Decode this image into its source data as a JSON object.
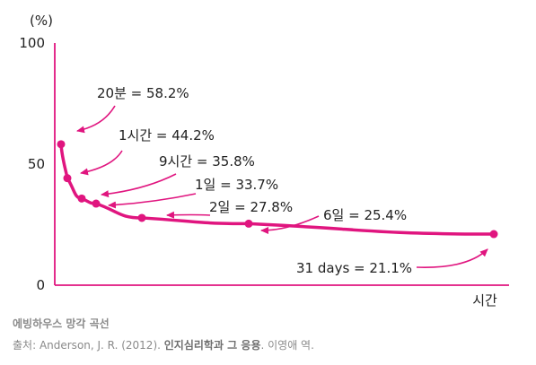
{
  "chart_data": {
    "type": "line",
    "y_unit_label": "(%)",
    "xlabel": "시간",
    "ylim": [
      0,
      100
    ],
    "y_ticks": [
      "0",
      "50",
      "100"
    ],
    "series_color": "#e0157f",
    "points": [
      {
        "time": "20분",
        "y": 58.2,
        "label": "20분 = 58.2%"
      },
      {
        "time": "1시간",
        "y": 44.2,
        "label": "1시간 = 44.2%"
      },
      {
        "time": "9시간",
        "y": 35.8,
        "label": "9시간 = 35.8%"
      },
      {
        "time": "1일",
        "y": 33.7,
        "label": "1일 = 33.7%"
      },
      {
        "time": "2일",
        "y": 27.8,
        "label": "2일 = 27.8%"
      },
      {
        "time": "6일",
        "y": 25.4,
        "label": "6일 = 25.4%"
      },
      {
        "time": "31 days",
        "y": 21.1,
        "label": "31 days = 21.1%"
      }
    ]
  },
  "caption": {
    "title": "에빙하우스 망각 곡선",
    "source_prefix": "출처: Anderson, J. R. (2012). ",
    "source_book": "인지심리학과 그 응용",
    "source_suffix": ". 이영애 역."
  }
}
